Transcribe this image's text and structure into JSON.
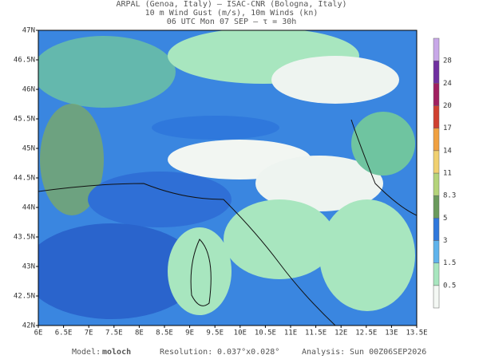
{
  "header": {
    "lines": [
      "ARPAL (Genoa, Italy)  –  ISAC-CNR (Bologna, Italy)",
      "10 m Wind Gust (m/s), 10m Winds (kn)",
      "06 UTC Mon 07 SEP  –  τ = 30h"
    ]
  },
  "map": {
    "lon_labels": [
      "6E",
      "6.5E",
      "7E",
      "7.5E",
      "8E",
      "8.5E",
      "9E",
      "9.5E",
      "10E",
      "10.5E",
      "11E",
      "11.5E",
      "12E",
      "12.5E",
      "13E",
      "13.5E"
    ],
    "lat_labels": [
      "42N",
      "42.5N",
      "43N",
      "43.5N",
      "44N",
      "44.5N",
      "45N",
      "45.5N",
      "46N",
      "46.5N",
      "47N"
    ]
  },
  "colorbar": {
    "labels": [
      "0.5",
      "1.5",
      "3",
      "5",
      "8.3",
      "11",
      "14",
      "17",
      "20",
      "24",
      "28"
    ],
    "colors": [
      "#f4f8f4",
      "#a8e6bf",
      "#5fb3ec",
      "#2f78dc",
      "#6a9a5c",
      "#b4d47a",
      "#f0d070",
      "#f0a040",
      "#d04030",
      "#a02060",
      "#7030a0",
      "#c8a8e8"
    ]
  },
  "footer": {
    "model_label": "Model:",
    "model": "moloch",
    "resolution_label": "Resolution:",
    "resolution": "0.037°x0.028°",
    "analysis_label": "Analysis:",
    "analysis": "Sun 00Z06SEP2026"
  }
}
